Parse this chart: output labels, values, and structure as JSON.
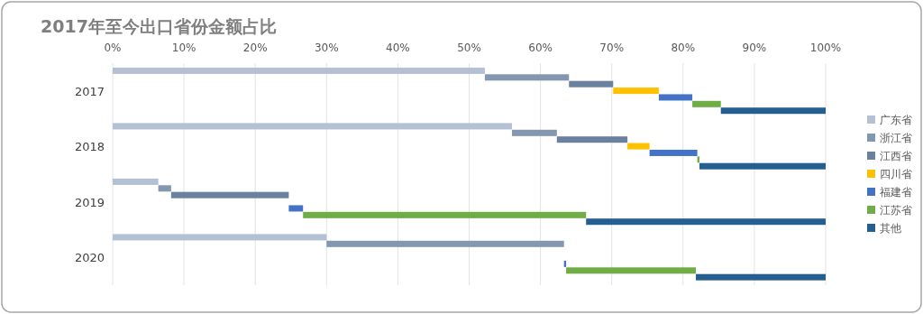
{
  "chart_data": {
    "type": "bar",
    "orientation": "horizontal",
    "title": "2017年至今出口省份金额占比",
    "categories": [
      "2017",
      "2018",
      "2019",
      "2020"
    ],
    "series": [
      {
        "name": "广东省",
        "color": "#b4c0d3",
        "values": [
          52.2,
          56.0,
          6.4,
          30.0
        ],
        "base": [
          0,
          0,
          0,
          0
        ]
      },
      {
        "name": "浙江省",
        "color": "#8497b0",
        "values": [
          11.8,
          6.3,
          1.8,
          33.3
        ],
        "base": [
          52.2,
          56.0,
          6.4,
          30.0
        ]
      },
      {
        "name": "江西省",
        "color": "#6a819f",
        "values": [
          6.2,
          9.9,
          16.5,
          null
        ],
        "base": [
          64.0,
          62.3,
          8.2,
          null
        ]
      },
      {
        "name": "四川省",
        "color": "#ffc000",
        "values": [
          6.4,
          3.1,
          null,
          null
        ],
        "base": [
          70.2,
          72.2,
          null,
          null
        ]
      },
      {
        "name": "福建省",
        "color": "#4472c4",
        "values": [
          4.7,
          6.7,
          2.0,
          0.3
        ],
        "base": [
          76.6,
          75.3,
          24.7,
          63.3
        ]
      },
      {
        "name": "江苏省",
        "color": "#70ad47",
        "values": [
          4.0,
          0.3,
          39.7,
          18.2
        ],
        "base": [
          81.3,
          82.0,
          26.7,
          63.6
        ]
      },
      {
        "name": "其他",
        "color": "#255e91",
        "values": [
          14.7,
          17.7,
          33.6,
          18.2
        ],
        "base": [
          85.3,
          82.3,
          66.4,
          81.8
        ]
      }
    ],
    "xlim": [
      0,
      100
    ],
    "xticks": [
      {
        "value": 0,
        "label": "0%"
      },
      {
        "value": 10,
        "label": "10%"
      },
      {
        "value": 20,
        "label": "20%"
      },
      {
        "value": 30,
        "label": "30%"
      },
      {
        "value": 40,
        "label": "40%"
      },
      {
        "value": 50,
        "label": "50%"
      },
      {
        "value": 60,
        "label": "60%"
      },
      {
        "value": 70,
        "label": "70%"
      },
      {
        "value": 80,
        "label": "80%"
      },
      {
        "value": 90,
        "label": "90%"
      },
      {
        "value": 100,
        "label": "100%"
      }
    ],
    "grid": "x",
    "legend": "right"
  }
}
